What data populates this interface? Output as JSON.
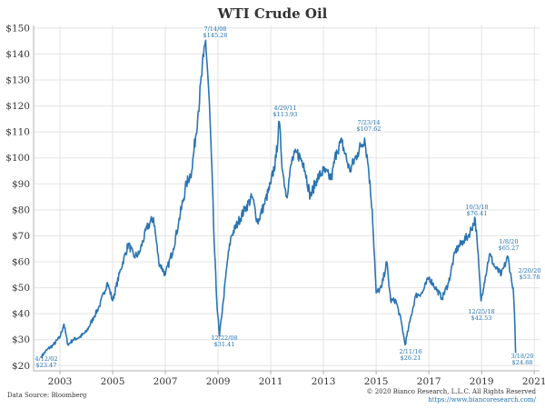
{
  "colors": {
    "line": "#2a74b3",
    "grid": "#e3e3e3",
    "axis": "#b0b0b0",
    "annotation": "#1f6fb0"
  },
  "footer": {
    "source": "Data Source: Bloomberg",
    "copyright": "© 2020 Bianco Research, L.L.C. All Rights Reserved",
    "url": "https://www.biancoresearch.com/"
  },
  "chart_data": {
    "type": "line",
    "title": "WTI Crude Oil",
    "xlabel": "",
    "ylabel": "",
    "xlim": [
      2002.0,
      2021.2
    ],
    "ylim": [
      18,
      151
    ],
    "y_ticks": [
      20,
      30,
      40,
      50,
      60,
      70,
      80,
      90,
      100,
      110,
      120,
      130,
      140,
      150
    ],
    "y_tick_labels": [
      "$20",
      "$30",
      "$40",
      "$50",
      "$60",
      "$70",
      "$80",
      "$90",
      "$100",
      "$110",
      "$120",
      "$130",
      "$140",
      "$150"
    ],
    "x_ticks": [
      2003,
      2005,
      2007,
      2009,
      2011,
      2013,
      2015,
      2017,
      2019,
      2021
    ],
    "x_tick_labels": [
      "2003",
      "2005",
      "2007",
      "2009",
      "2011",
      "2013",
      "2015",
      "2017",
      "2019",
      "2021"
    ],
    "grid": true,
    "series": [
      {
        "x": [
          2002.29,
          2002.5,
          2002.75,
          2003.0,
          2003.15,
          2003.3,
          2003.5,
          2003.75,
          2004.0,
          2004.3,
          2004.5,
          2004.8,
          2005.0,
          2005.3,
          2005.6,
          2005.8,
          2006.0,
          2006.3,
          2006.55,
          2006.75,
          2007.0,
          2007.3,
          2007.5,
          2007.8,
          2008.0,
          2008.25,
          2008.45,
          2008.53,
          2008.65,
          2008.75,
          2008.85,
          2008.95,
          2009.05,
          2009.2,
          2009.35,
          2009.5,
          2009.75,
          2010.0,
          2010.3,
          2010.5,
          2010.75,
          2011.0,
          2011.2,
          2011.32,
          2011.45,
          2011.6,
          2011.8,
          2012.0,
          2012.25,
          2012.5,
          2012.75,
          2013.0,
          2013.3,
          2013.5,
          2013.7,
          2014.0,
          2014.3,
          2014.56,
          2014.7,
          2014.85,
          2015.0,
          2015.2,
          2015.4,
          2015.55,
          2015.75,
          2015.95,
          2016.1,
          2016.3,
          2016.5,
          2016.75,
          2017.0,
          2017.25,
          2017.5,
          2017.75,
          2018.0,
          2018.3,
          2018.5,
          2018.76,
          2018.85,
          2018.98,
          2019.1,
          2019.3,
          2019.5,
          2019.75,
          2020.0,
          2020.15,
          2020.2,
          2020.25,
          2020.29
        ],
        "values": [
          23.47,
          26,
          28,
          31,
          36,
          28,
          30,
          31,
          33,
          39,
          43,
          52,
          45,
          57,
          67,
          62,
          63,
          73,
          77,
          60,
          55,
          65,
          75,
          90,
          95,
          118,
          139,
          145.28,
          125,
          100,
          68,
          45,
          31.41,
          45,
          60,
          70,
          75,
          80,
          85,
          75,
          82,
          90,
          100,
          113.93,
          95,
          85,
          99,
          102,
          98,
          85,
          92,
          95,
          92,
          103,
          106,
          95,
          102,
          107.62,
          97,
          80,
          48,
          50,
          60,
          45,
          45,
          37,
          28,
          38,
          47,
          48,
          54,
          50,
          46,
          52,
          64,
          68,
          70,
          76.41,
          65,
          45,
          52,
          63,
          58,
          55,
          62,
          52,
          50,
          40,
          24.88
        ]
      }
    ],
    "annotations": [
      {
        "date": "4/12/02",
        "value": "$23.47"
      },
      {
        "date": "7/14/08",
        "value": "$145.28"
      },
      {
        "date": "12/22/08",
        "value": "$31.41"
      },
      {
        "date": "4/29/11",
        "value": "$113.93"
      },
      {
        "date": "7/23/14",
        "value": "$107.62"
      },
      {
        "date": "2/11/16",
        "value": "$26.21"
      },
      {
        "date": "10/3/18",
        "value": "$76.41"
      },
      {
        "date": "12/25/18",
        "value": "$42.53"
      },
      {
        "date": "1/8/20",
        "value": "$65.27"
      },
      {
        "date": "2/20/20",
        "value": "$53.78"
      },
      {
        "date": "3/18/20",
        "value": "$24.88"
      }
    ]
  }
}
